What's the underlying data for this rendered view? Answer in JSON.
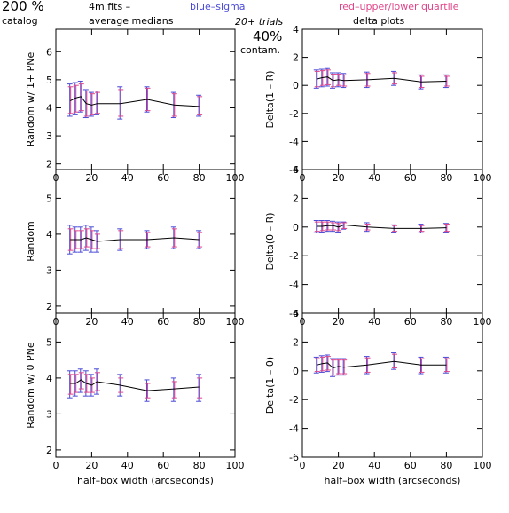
{
  "header": {
    "percent": "200 %",
    "catalog": "catalog",
    "file": "4m.fits  –",
    "avg_medians": "average medians",
    "blue_sigma": "blue–sigma",
    "red_quartile": "red–upper/lower quartile",
    "trials": "20+ trials",
    "delta_plots": "delta plots",
    "contam_value": "40%",
    "contam_label": "contam."
  },
  "colors": {
    "line": "#000000",
    "sigma": "#4a4ad8",
    "quartile": "#e0448a",
    "axis": "#000000"
  },
  "chart_data": [
    {
      "type": "line",
      "panel": "left-top",
      "title": "",
      "xlabel": "",
      "ylabel": "Random w/ 1+ PNe",
      "xlim": [
        0,
        100
      ],
      "ylim": [
        1.8,
        6.8
      ],
      "xticks": [
        0,
        20,
        40,
        60,
        80,
        100
      ],
      "yticks": [
        2,
        3,
        4,
        5,
        6
      ],
      "x": [
        8,
        11,
        14,
        17,
        20,
        23,
        36,
        51,
        66,
        80
      ],
      "series": [
        {
          "values": [
            4.25,
            4.35,
            4.4,
            4.15,
            4.1,
            4.15,
            4.15,
            4.3,
            4.1,
            4.05
          ],
          "sigma_low": [
            3.7,
            3.75,
            3.85,
            3.65,
            3.7,
            3.75,
            3.6,
            3.85,
            3.65,
            3.7
          ],
          "sigma_high": [
            4.85,
            4.9,
            4.95,
            4.65,
            4.55,
            4.6,
            4.75,
            4.75,
            4.55,
            4.45
          ],
          "q_low": [
            3.8,
            3.85,
            3.9,
            3.7,
            3.75,
            3.8,
            3.7,
            3.9,
            3.7,
            3.75
          ],
          "q_high": [
            4.75,
            4.8,
            4.85,
            4.6,
            4.5,
            4.55,
            4.65,
            4.7,
            4.5,
            4.4
          ]
        }
      ]
    },
    {
      "type": "line",
      "panel": "right-top",
      "title": "",
      "xlabel": "",
      "ylabel": "Delta(1 – R)",
      "xlim": [
        0,
        100
      ],
      "ylim": [
        -6,
        4
      ],
      "xticks": [
        0,
        20,
        40,
        60,
        80,
        100
      ],
      "yticks": [
        -6,
        -4,
        -2,
        0,
        2,
        4
      ],
      "x": [
        8,
        11,
        14,
        17,
        20,
        23,
        36,
        51,
        66,
        80
      ],
      "series": [
        {
          "values": [
            0.45,
            0.55,
            0.6,
            0.35,
            0.4,
            0.35,
            0.4,
            0.5,
            0.25,
            0.3
          ],
          "sigma_low": [
            -0.2,
            -0.1,
            -0.05,
            -0.2,
            -0.1,
            -0.15,
            -0.15,
            0.0,
            -0.25,
            -0.15
          ],
          "sigma_high": [
            1.1,
            1.15,
            1.2,
            0.9,
            0.9,
            0.85,
            0.95,
            1.0,
            0.75,
            0.75
          ],
          "q_low": [
            -0.1,
            0.0,
            0.05,
            -0.1,
            0.0,
            -0.05,
            -0.05,
            0.1,
            -0.15,
            -0.05
          ],
          "q_high": [
            1.0,
            1.05,
            1.1,
            0.8,
            0.8,
            0.75,
            0.85,
            0.9,
            0.65,
            0.65
          ]
        }
      ]
    },
    {
      "type": "line",
      "panel": "left-middle",
      "title": "",
      "xlabel": "",
      "ylabel": "Random",
      "xlim": [
        0,
        100
      ],
      "ylim": [
        1.8,
        5.8
      ],
      "xticks": [
        0,
        20,
        40,
        60,
        80,
        100
      ],
      "yticks": [
        2,
        3,
        4,
        5
      ],
      "x": [
        8,
        11,
        14,
        17,
        20,
        23,
        36,
        51,
        66,
        80
      ],
      "series": [
        {
          "values": [
            3.85,
            3.85,
            3.85,
            3.9,
            3.85,
            3.8,
            3.85,
            3.85,
            3.9,
            3.85
          ],
          "sigma_low": [
            3.45,
            3.5,
            3.5,
            3.55,
            3.5,
            3.5,
            3.55,
            3.6,
            3.6,
            3.6
          ],
          "sigma_high": [
            4.25,
            4.2,
            4.2,
            4.25,
            4.2,
            4.1,
            4.15,
            4.1,
            4.2,
            4.1
          ],
          "q_low": [
            3.55,
            3.6,
            3.6,
            3.65,
            3.6,
            3.6,
            3.6,
            3.65,
            3.65,
            3.65
          ],
          "q_high": [
            4.15,
            4.1,
            4.1,
            4.15,
            4.1,
            4.0,
            4.1,
            4.05,
            4.15,
            4.05
          ]
        }
      ]
    },
    {
      "type": "line",
      "panel": "right-middle",
      "title": "",
      "xlabel": "",
      "ylabel": "Delta(0 – R)",
      "xlim": [
        0,
        100
      ],
      "ylim": [
        -6,
        4
      ],
      "xticks": [
        0,
        20,
        40,
        60,
        80,
        100
      ],
      "yticks": [
        -6,
        -4,
        -2,
        0,
        2,
        4
      ],
      "x": [
        8,
        11,
        14,
        17,
        20,
        23,
        36,
        51,
        66,
        80
      ],
      "series": [
        {
          "values": [
            0.05,
            0.05,
            0.1,
            0.1,
            0.0,
            0.15,
            0.0,
            -0.1,
            -0.1,
            -0.05
          ],
          "sigma_low": [
            -0.4,
            -0.35,
            -0.3,
            -0.3,
            -0.35,
            -0.15,
            -0.3,
            -0.35,
            -0.4,
            -0.35
          ],
          "sigma_high": [
            0.45,
            0.45,
            0.45,
            0.4,
            0.35,
            0.35,
            0.3,
            0.15,
            0.2,
            0.25
          ],
          "q_low": [
            -0.3,
            -0.25,
            -0.2,
            -0.2,
            -0.25,
            -0.1,
            -0.2,
            -0.3,
            -0.3,
            -0.3
          ],
          "q_high": [
            0.35,
            0.35,
            0.35,
            0.3,
            0.25,
            0.3,
            0.2,
            0.1,
            0.1,
            0.2
          ]
        }
      ]
    },
    {
      "type": "line",
      "panel": "left-bottom",
      "title": "",
      "xlabel": "half–box width (arcseconds)",
      "ylabel": "Random w/ 0 PNe",
      "xlim": [
        0,
        100
      ],
      "ylim": [
        1.8,
        5.8
      ],
      "xticks": [
        0,
        20,
        40,
        60,
        80,
        100
      ],
      "yticks": [
        2,
        3,
        4,
        5
      ],
      "x": [
        8,
        11,
        14,
        17,
        20,
        23,
        36,
        51,
        66,
        80
      ],
      "series": [
        {
          "values": [
            3.85,
            3.85,
            3.95,
            3.85,
            3.8,
            3.9,
            3.8,
            3.65,
            3.7,
            3.75
          ],
          "sigma_low": [
            3.45,
            3.5,
            3.6,
            3.5,
            3.5,
            3.55,
            3.5,
            3.35,
            3.35,
            3.35
          ],
          "sigma_high": [
            4.2,
            4.2,
            4.25,
            4.2,
            4.1,
            4.25,
            4.1,
            3.95,
            4.0,
            4.1
          ],
          "q_low": [
            3.55,
            3.6,
            3.7,
            3.6,
            3.6,
            3.65,
            3.6,
            3.45,
            3.45,
            3.45
          ],
          "q_high": [
            4.1,
            4.1,
            4.15,
            4.1,
            4.0,
            4.15,
            4.0,
            3.85,
            3.9,
            4.0
          ]
        }
      ]
    },
    {
      "type": "line",
      "panel": "right-bottom",
      "title": "",
      "xlabel": "half–box width (arcseconds)",
      "ylabel": "Delta(1 – 0)",
      "xlim": [
        0,
        100
      ],
      "ylim": [
        -6,
        4
      ],
      "xticks": [
        0,
        20,
        40,
        60,
        80,
        100
      ],
      "yticks": [
        -6,
        -4,
        -2,
        0,
        2,
        4
      ],
      "x": [
        8,
        11,
        14,
        17,
        20,
        23,
        36,
        51,
        66,
        80
      ],
      "series": [
        {
          "values": [
            0.4,
            0.5,
            0.55,
            0.2,
            0.3,
            0.25,
            0.4,
            0.65,
            0.4,
            0.4
          ],
          "sigma_low": [
            -0.15,
            -0.1,
            -0.05,
            -0.4,
            -0.3,
            -0.3,
            -0.2,
            0.1,
            -0.2,
            -0.15
          ],
          "sigma_high": [
            0.95,
            1.05,
            1.1,
            0.85,
            0.85,
            0.85,
            1.0,
            1.25,
            0.95,
            0.95
          ],
          "q_low": [
            -0.05,
            0.0,
            0.05,
            -0.3,
            -0.2,
            -0.2,
            -0.1,
            0.2,
            -0.1,
            -0.05
          ],
          "q_high": [
            0.85,
            0.95,
            1.0,
            0.75,
            0.75,
            0.75,
            0.9,
            1.15,
            0.85,
            0.85
          ]
        }
      ]
    }
  ]
}
